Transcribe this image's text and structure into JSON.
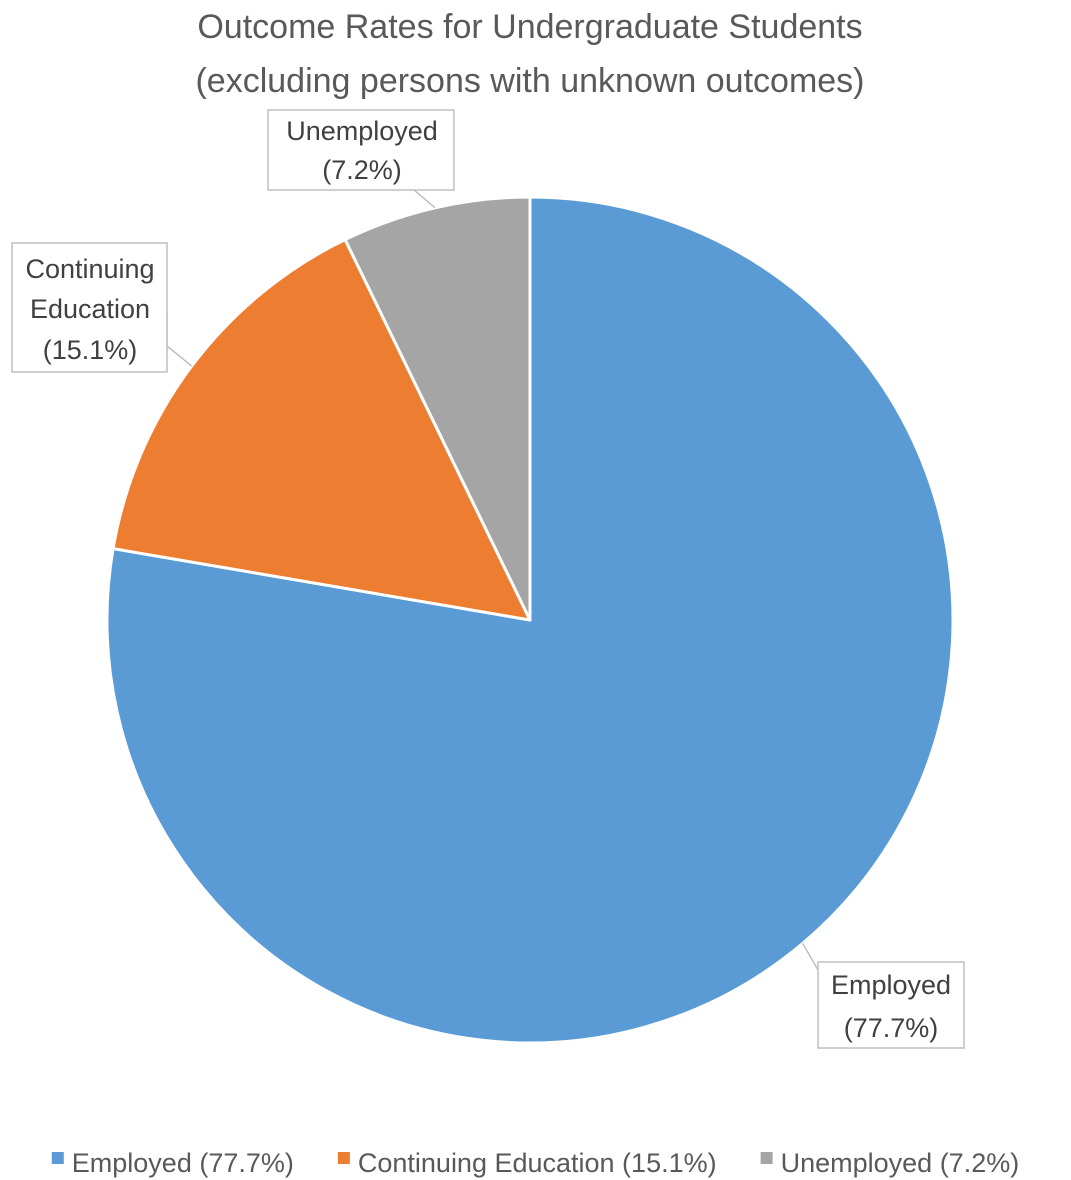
{
  "chart_data": {
    "type": "pie",
    "title": "Outcome Rates for Undergraduate Students",
    "subtitle": "(excluding persons with unknown outcomes)",
    "start_angle_deg": 0,
    "direction": "clockwise",
    "series": [
      {
        "name": "Employed",
        "value": 77.7,
        "color": "#5B9BD5",
        "label_lines": [
          "Employed",
          "(77.7%)"
        ],
        "legend": "Employed (77.7%)"
      },
      {
        "name": "Continuing Education",
        "value": 15.1,
        "color": "#ED7D31",
        "label_lines": [
          "Continuing",
          "Education",
          "(15.1%)"
        ],
        "legend": "Continuing Education (15.1%)"
      },
      {
        "name": "Unemployed",
        "value": 7.2,
        "color": "#A5A5A5",
        "label_lines": [
          "Unemployed",
          "(7.2%)"
        ],
        "legend": "Unemployed (7.2%)"
      }
    ],
    "legend_position": "bottom",
    "data_labels": "callout"
  }
}
